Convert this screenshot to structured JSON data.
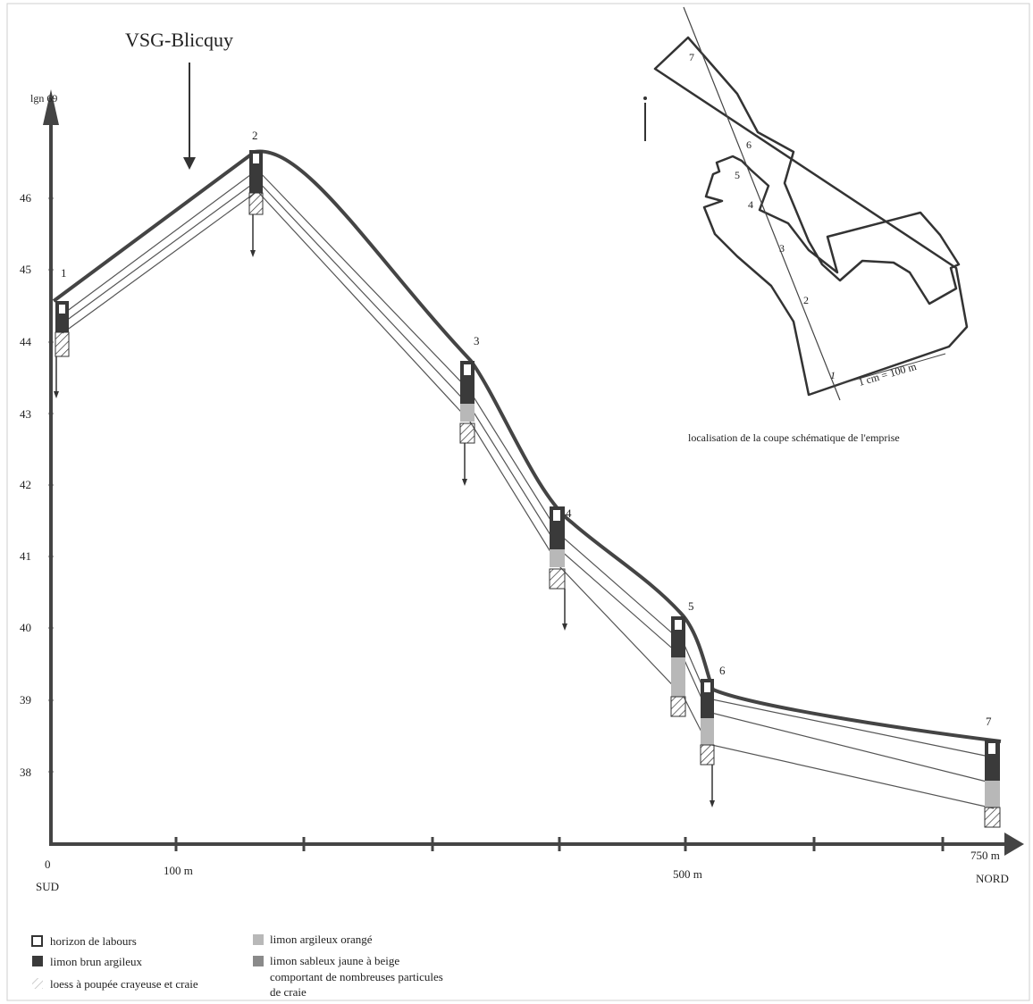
{
  "title": "VSG-Blicquy",
  "y_axis_label": "lgn 69",
  "y_ticks": [
    "46",
    "45",
    "44",
    "43",
    "42",
    "41",
    "40",
    "39",
    "38"
  ],
  "x_labels": {
    "origin": "0",
    "south": "SUD",
    "m100": "100 m",
    "m500": "500 m",
    "m750": "750 m",
    "north": "NORD"
  },
  "profiles": [
    "1",
    "2",
    "3",
    "4",
    "5",
    "6",
    "7"
  ],
  "inset": {
    "points": [
      "7",
      "6",
      "5",
      "4",
      "3",
      "2",
      "1"
    ],
    "scale": "1 cm = 100 m",
    "caption": "localisation de la coupe schématique de l'emprise"
  },
  "legend": {
    "labours": "horizon de labours",
    "brun": "limon brun argileux",
    "loess": "loess à poupée crayeuse et craie",
    "orange": "limon argileux orangé",
    "sableux_1": "limon sableux jaune à beige",
    "sableux_2": "comportant de nombreuses particules",
    "sableux_3": "de craie"
  },
  "colors": {
    "dark": "#3a3a3a",
    "light_gray": "#b8b8b8",
    "mid_gray": "#8a8a8a",
    "line": "#444444"
  }
}
